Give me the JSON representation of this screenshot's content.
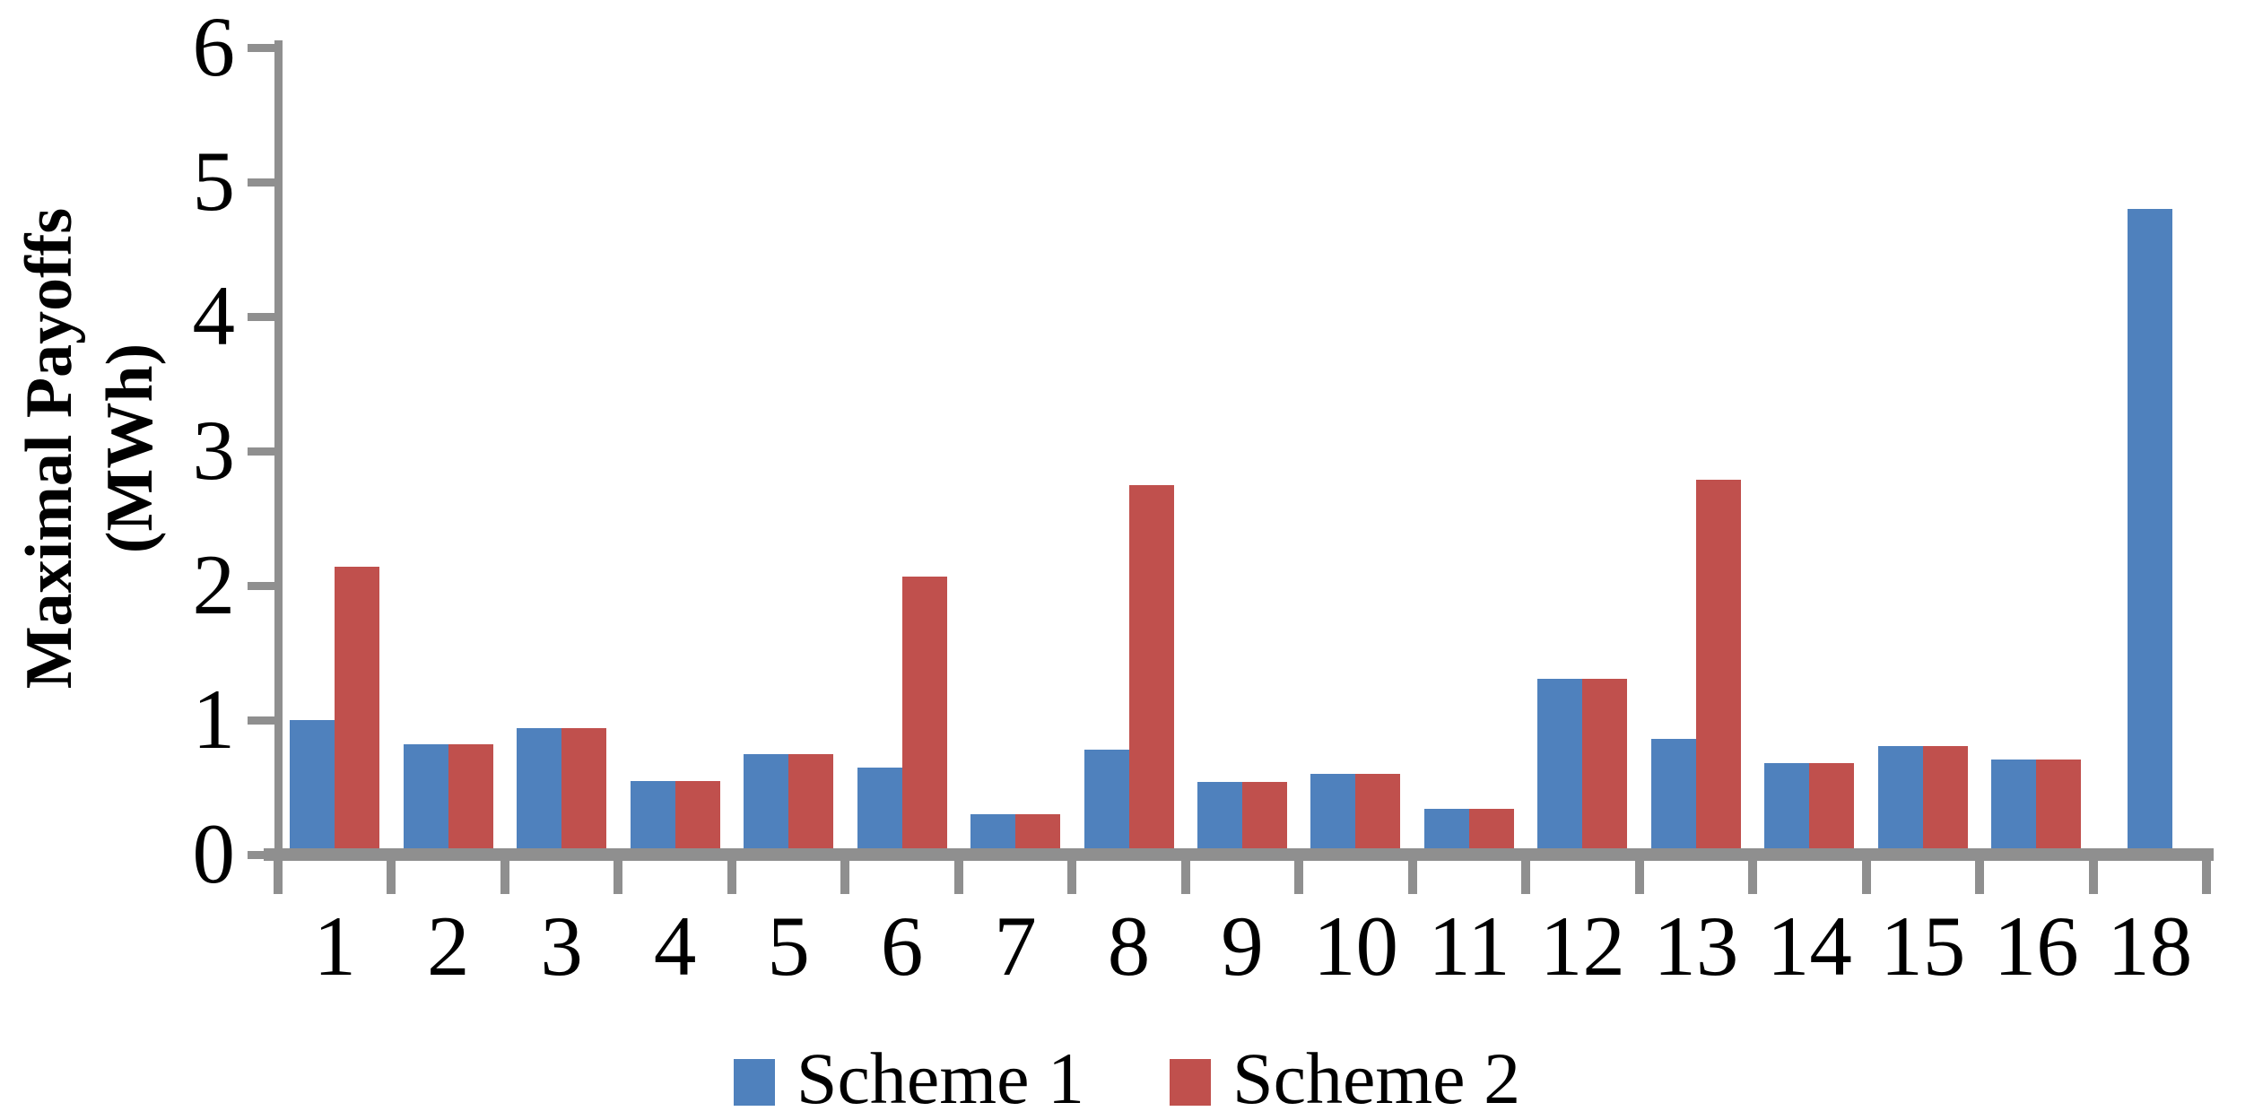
{
  "chart_data": {
    "type": "bar",
    "title": "",
    "ylabel_lines": [
      "Maximal Payoffs",
      "(MWh)"
    ],
    "xlabel": "",
    "categories": [
      "1",
      "2",
      "3",
      "4",
      "5",
      "6",
      "7",
      "8",
      "9",
      "10",
      "11",
      "12",
      "13",
      "14",
      "15",
      "16",
      "18"
    ],
    "series": [
      {
        "name": "Scheme 1",
        "color": "#4F81BD",
        "values": [
          1.0,
          0.82,
          0.94,
          0.55,
          0.75,
          0.65,
          0.3,
          0.78,
          0.54,
          0.6,
          0.34,
          1.31,
          0.86,
          0.68,
          0.81,
          0.71,
          4.8
        ]
      },
      {
        "name": "Scheme 2",
        "color": "#C0504D",
        "values": [
          2.14,
          0.82,
          0.94,
          0.55,
          0.75,
          2.07,
          0.3,
          2.75,
          0.54,
          0.6,
          0.34,
          1.31,
          2.79,
          0.68,
          0.81,
          0.71,
          null
        ]
      }
    ],
    "y_ticks": [
      0,
      1,
      2,
      3,
      4,
      5,
      6
    ],
    "ylim": [
      0,
      6
    ],
    "grid": false,
    "legend_position": "bottom",
    "axis_color": "#8F8F8F"
  }
}
